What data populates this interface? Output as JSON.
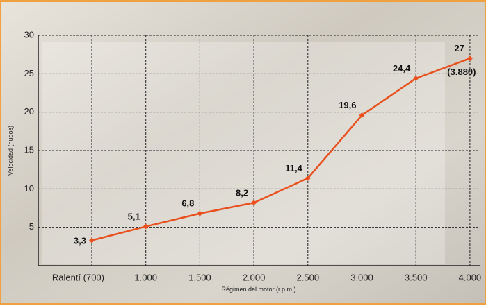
{
  "chart_data": {
    "type": "line",
    "x_label": "Régimen del motor (r.p.m.)",
    "y_label": "Velocidad (nudos)",
    "categories": [
      "Ralentí (700)",
      "1.000",
      "1.500",
      "2.000",
      "2.500",
      "3.000",
      "3.500",
      "4.000"
    ],
    "series": [
      {
        "name": "Velocidad",
        "color": "#e8501e",
        "values": [
          3.3,
          5.1,
          6.8,
          8.2,
          11.4,
          19.6,
          24.4,
          27
        ],
        "value_labels": [
          "3,3",
          "5,1",
          "6,8",
          "8,2",
          "11,4",
          "19,6",
          "24,4",
          "27"
        ]
      }
    ],
    "annotations": [
      "(3.880)"
    ],
    "ylim": [
      0,
      30
    ],
    "yticks": [
      5,
      10,
      15,
      20,
      25,
      30
    ],
    "grid": true
  }
}
